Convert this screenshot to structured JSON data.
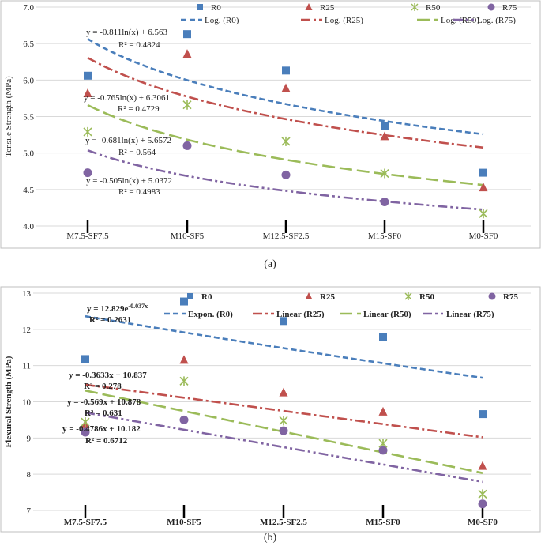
{
  "chart_data": [
    {
      "type": "scatter",
      "panel_label": "(a)",
      "ylabel": "Tensile Strength (MPa)",
      "xlabel": "",
      "ylim": [
        4.0,
        7.0
      ],
      "yticks": [
        4.0,
        4.5,
        5.0,
        5.5,
        6.0,
        6.5,
        7.0
      ],
      "ytick_labels": [
        "4.0",
        "4.5",
        "5.0",
        "5.5",
        "6.0",
        "6.5",
        "7.0"
      ],
      "categories": [
        "M7.5-SF7.5",
        "M10-SF5",
        "M12.5-SF2.5",
        "M15-SF0",
        "M0-SF0"
      ],
      "grid": true,
      "series": [
        {
          "name": "R0",
          "marker": "square",
          "color": "#4a7ebb",
          "values": [
            6.06,
            6.63,
            6.13,
            5.37,
            4.73
          ]
        },
        {
          "name": "R25",
          "marker": "triangle",
          "color": "#c0504d",
          "values": [
            5.82,
            6.36,
            5.89,
            5.23,
            4.53
          ]
        },
        {
          "name": "R50",
          "marker": "star",
          "color": "#9bbb59",
          "values": [
            5.29,
            5.66,
            5.16,
            4.72,
            4.17
          ]
        },
        {
          "name": "R75",
          "marker": "circle",
          "color": "#8064a2",
          "values": [
            4.73,
            5.1,
            4.7,
            4.33,
            null
          ]
        }
      ],
      "trendlines": [
        {
          "name": "Log. (R0)",
          "kind": "log",
          "a": -0.811,
          "b": 6.563,
          "color": "#4a7ebb",
          "dash": "dash",
          "equation": "y = -0.811ln(x) + 6.563",
          "r2": "R² = 0.4824"
        },
        {
          "name": "Log. (R25)",
          "kind": "log",
          "a": -0.765,
          "b": 6.3061,
          "color": "#c0504d",
          "dash": "dashdot",
          "equation": "y = -0.765ln(x) + 6.3061",
          "r2": "R² = 0.4729"
        },
        {
          "name": "Log. (R50)",
          "kind": "log",
          "a": -0.681,
          "b": 5.6572,
          "color": "#9bbb59",
          "dash": "longdash",
          "equation": "y = -0.681ln(x) + 5.6572",
          "r2": "R² = 0.564"
        },
        {
          "name": "Log. (R75)",
          "kind": "log",
          "a": -0.505,
          "b": 5.0372,
          "color": "#8064a2",
          "dash": "dashdotdot",
          "equation": "y = -0.505ln(x) + 5.0372",
          "r2": "R² = 0.4983"
        }
      ]
    },
    {
      "type": "scatter",
      "panel_label": "(b)",
      "ylabel": "Flexural Strength (MPa)",
      "xlabel": "",
      "ylim": [
        7,
        13
      ],
      "yticks": [
        7,
        8,
        9,
        10,
        11,
        12,
        13
      ],
      "ytick_labels": [
        "7",
        "8",
        "9",
        "10",
        "11",
        "12",
        "13"
      ],
      "categories": [
        "M7.5-SF7.5",
        "M10-SF5",
        "M12.5-SF2.5",
        "M15-SF0",
        "M0-SF0"
      ],
      "grid": true,
      "series": [
        {
          "name": "R0",
          "marker": "square",
          "color": "#4a7ebb",
          "values": [
            11.18,
            12.77,
            12.23,
            11.8,
            9.66
          ]
        },
        {
          "name": "R25",
          "marker": "triangle",
          "color": "#c0504d",
          "values": [
            9.38,
            11.16,
            10.26,
            9.73,
            8.23
          ]
        },
        {
          "name": "R50",
          "marker": "star",
          "color": "#9bbb59",
          "values": [
            9.44,
            10.57,
            9.48,
            8.85,
            7.45
          ]
        },
        {
          "name": "R75",
          "marker": "circle",
          "color": "#8064a2",
          "values": [
            9.16,
            9.5,
            9.2,
            8.66,
            7.18
          ]
        }
      ],
      "trendlines": [
        {
          "name": "Expon. (R0)",
          "kind": "exp",
          "a": 12.829,
          "b": -0.037,
          "color": "#4a7ebb",
          "dash": "dash",
          "equation": "y = 12.829e",
          "equation_sup": "-0.037x",
          "r2": "R² = 0.2631"
        },
        {
          "name": "Linear (R25)",
          "kind": "linear",
          "a": -0.3633,
          "b": 10.837,
          "color": "#c0504d",
          "dash": "dashdot",
          "equation": "y = -0.3633x + 10.837",
          "r2": "R² = 0.278"
        },
        {
          "name": "Linear (R50)",
          "kind": "linear",
          "a": -0.569,
          "b": 10.878,
          "color": "#9bbb59",
          "dash": "longdash",
          "equation": "y = -0.569x + 10.878",
          "r2": "R² = 0.631"
        },
        {
          "name": "Linear (R75)",
          "kind": "linear",
          "a": -0.4786,
          "b": 10.182,
          "color": "#8064a2",
          "dash": "dashdotdot",
          "equation": "y = -0.4786x + 10.182",
          "r2": "R² = 0.6712"
        }
      ]
    }
  ]
}
